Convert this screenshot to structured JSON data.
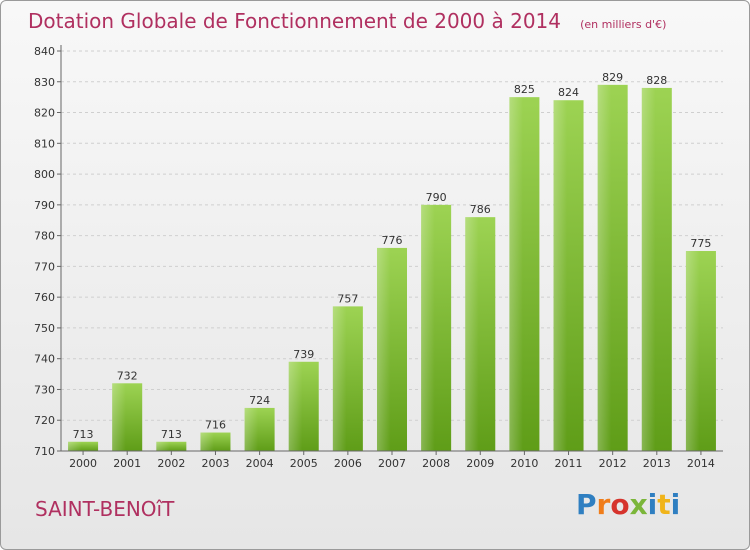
{
  "title": "Dotation Globale de Fonctionnement de 2000 à 2014",
  "unit_note": "(en milliers d'€)",
  "commune": "SAINT-BENOîT",
  "logo": {
    "text": "Proxiti",
    "colors": [
      "#2f7fc1",
      "#f07d1a",
      "#d6332c",
      "#7bb63a",
      "#2f7fc1",
      "#f0b41a",
      "#2f7fc1"
    ]
  },
  "colors": {
    "bar_light": "#9dd353",
    "bar_dark": "#5f9d18",
    "accent": "#b03060"
  },
  "chart_data": {
    "type": "bar",
    "title": "Dotation Globale de Fonctionnement de 2000 à 2014",
    "categories": [
      "2000",
      "2001",
      "2002",
      "2003",
      "2004",
      "2005",
      "2006",
      "2007",
      "2008",
      "2009",
      "2010",
      "2011",
      "2012",
      "2013",
      "2014"
    ],
    "values": [
      713,
      732,
      713,
      716,
      724,
      739,
      757,
      776,
      790,
      786,
      825,
      824,
      829,
      828,
      775
    ],
    "ylim": [
      710,
      840
    ],
    "yticks": [
      710,
      720,
      730,
      740,
      750,
      760,
      770,
      780,
      790,
      800,
      810,
      820,
      830,
      840
    ],
    "grid": true,
    "xlabel": "",
    "ylabel": ""
  }
}
